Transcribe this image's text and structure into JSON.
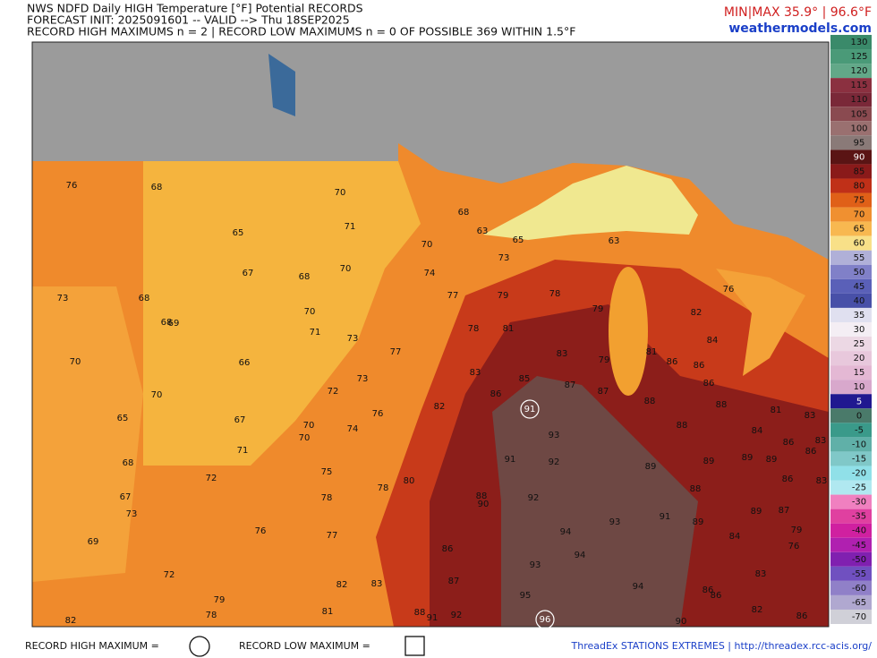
{
  "header": {
    "title": "NWS NDFD Daily HIGH Temperature [°F] Potential RECORDS",
    "forecast": "FORECAST INIT: 2025091601 -- VALID --> Thu 18SEP2025",
    "records": "RECORD HIGH MAXIMUMS n = 2 | RECORD LOW MAXIMUMS n = 0 OF POSSIBLE 369 WITHIN 1.5°F",
    "minmax": "MIN|MAX 35.9° | 96.6°F",
    "site": "weathermodels.com"
  },
  "colorbar": {
    "ticks": [
      130,
      125,
      120,
      115,
      110,
      105,
      100,
      95,
      90,
      85,
      80,
      75,
      70,
      65,
      60,
      55,
      50,
      45,
      40,
      35,
      30,
      25,
      20,
      15,
      10,
      5,
      0,
      -5,
      -10,
      -15,
      -20,
      -25,
      -30,
      -35,
      -40,
      -45,
      -50,
      -55,
      -60,
      -65,
      -70
    ]
  },
  "stations": [
    {
      "value": 76
    },
    {
      "value": 68
    },
    {
      "value": 70
    },
    {
      "value": 68
    },
    {
      "value": 65
    },
    {
      "value": 71
    },
    {
      "value": 70
    },
    {
      "value": 63
    },
    {
      "value": 65
    },
    {
      "value": 63
    },
    {
      "value": 67
    },
    {
      "value": 68
    },
    {
      "value": 70
    },
    {
      "value": 74
    },
    {
      "value": 73
    },
    {
      "value": 78
    },
    {
      "value": 76
    },
    {
      "value": 73
    },
    {
      "value": 68
    },
    {
      "value": 77
    },
    {
      "value": 79
    },
    {
      "value": 70
    },
    {
      "value": 68
    },
    {
      "value": 69
    },
    {
      "value": 71
    },
    {
      "value": 73
    },
    {
      "value": 78
    },
    {
      "value": 81
    },
    {
      "value": 79
    },
    {
      "value": 82
    },
    {
      "value": 84
    },
    {
      "value": 81
    },
    {
      "value": 70
    },
    {
      "value": 66
    },
    {
      "value": 77
    },
    {
      "value": 83
    },
    {
      "value": 79
    },
    {
      "value": 86
    },
    {
      "value": 86
    },
    {
      "value": 83
    },
    {
      "value": 73
    },
    {
      "value": 85
    },
    {
      "value": 87
    },
    {
      "value": 86
    },
    {
      "value": 72
    },
    {
      "value": 70
    },
    {
      "value": 86
    },
    {
      "value": 87
    },
    {
      "value": 88
    },
    {
      "value": 88
    },
    {
      "value": 82
    },
    {
      "value": 91,
      "record_high": true
    },
    {
      "value": 81
    },
    {
      "value": 83
    },
    {
      "value": 76
    },
    {
      "value": 65
    },
    {
      "value": 67
    },
    {
      "value": 70
    },
    {
      "value": 74
    },
    {
      "value": 88
    },
    {
      "value": 84
    },
    {
      "value": 93
    },
    {
      "value": 70
    },
    {
      "value": 86
    },
    {
      "value": 83
    },
    {
      "value": 71
    },
    {
      "value": 86
    },
    {
      "value": 91
    },
    {
      "value": 92
    },
    {
      "value": 89
    },
    {
      "value": 89
    },
    {
      "value": 89
    },
    {
      "value": 89
    },
    {
      "value": 68
    },
    {
      "value": 75
    },
    {
      "value": 72
    },
    {
      "value": 80
    },
    {
      "value": 78
    },
    {
      "value": 86
    },
    {
      "value": 83
    },
    {
      "value": 88
    },
    {
      "value": 90
    },
    {
      "value": 92
    },
    {
      "value": 88
    },
    {
      "value": 67
    },
    {
      "value": 78
    },
    {
      "value": 73
    },
    {
      "value": 93
    },
    {
      "value": 91
    },
    {
      "value": 89
    },
    {
      "value": 89
    },
    {
      "value": 87
    },
    {
      "value": 79
    },
    {
      "value": 76
    },
    {
      "value": 76
    },
    {
      "value": 77
    },
    {
      "value": 94
    },
    {
      "value": 84
    },
    {
      "value": 69
    },
    {
      "value": 86
    },
    {
      "value": 94
    },
    {
      "value": 93
    },
    {
      "value": 83
    },
    {
      "value": 72
    },
    {
      "value": 79
    },
    {
      "value": 87
    },
    {
      "value": 94
    },
    {
      "value": 86
    },
    {
      "value": 82
    },
    {
      "value": 83
    },
    {
      "value": 86
    },
    {
      "value": 95
    },
    {
      "value": 78
    },
    {
      "value": 81
    },
    {
      "value": 88
    },
    {
      "value": 91
    },
    {
      "value": 92
    },
    {
      "value": 82
    },
    {
      "value": 96,
      "record_high": true
    },
    {
      "value": 90
    },
    {
      "value": 86
    },
    {
      "value": 82
    }
  ],
  "footer": {
    "record_high": "RECORD HIGH MAXIMUM =",
    "record_low": "RECORD LOW MAXIMUM =",
    "source": "ThreadEx STATIONS EXTREMES | http://threadex.rcc-acis.org/"
  }
}
